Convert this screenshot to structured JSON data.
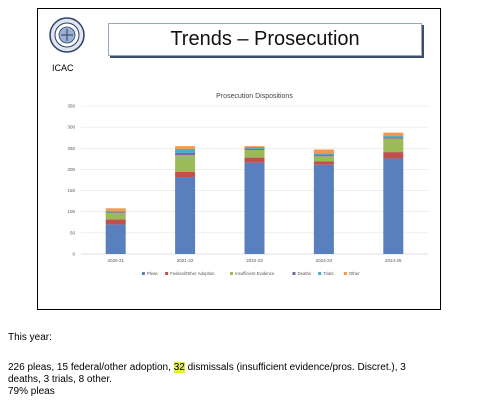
{
  "slide": {
    "seal_label": "ICAC",
    "title": "Trends – Prosecution",
    "colors": {
      "title_border": "#9aa8bd",
      "title_shadow": "#3d4d6a"
    }
  },
  "chart_data": {
    "type": "bar",
    "stacked": true,
    "title": "Prosecution Dispositions",
    "xlabel": "",
    "ylabel": "",
    "categories": [
      "2020-21",
      "2021-22",
      "2022-23",
      "2023-24",
      "2024-25"
    ],
    "ylim": [
      0,
      350
    ],
    "yticks": [
      0,
      50,
      100,
      150,
      200,
      250,
      300,
      350
    ],
    "grid": true,
    "legend": "bottom",
    "series": [
      {
        "name": "Pleas",
        "color": "#5a7fbf",
        "values": [
          70,
          182,
          216,
          211,
          226
        ]
      },
      {
        "name": "Federal/Other Adoption",
        "color": "#c0504d",
        "values": [
          12,
          12,
          12,
          8,
          15
        ]
      },
      {
        "name": "Insufficient Evidence",
        "color": "#9bbb59",
        "values": [
          16,
          40,
          18,
          12,
          32
        ]
      },
      {
        "name": "Deaths",
        "color": "#8064a2",
        "values": [
          2,
          5,
          3,
          3,
          3
        ]
      },
      {
        "name": "Trials",
        "color": "#4bacc6",
        "values": [
          2,
          10,
          4,
          4,
          3
        ]
      },
      {
        "name": "Other",
        "color": "#f79646",
        "values": [
          6,
          6,
          2,
          9,
          8
        ]
      }
    ]
  },
  "caption": {
    "heading": "This year:",
    "line1_pre": "226 pleas, 15 federal/other adoption, ",
    "line1_highlight": "32",
    "line1_post": " dismissals (insufficient evidence/pros. Discret.), 3",
    "line2": "deaths, 3 trials, 8 other.",
    "line3": "79% pleas"
  }
}
